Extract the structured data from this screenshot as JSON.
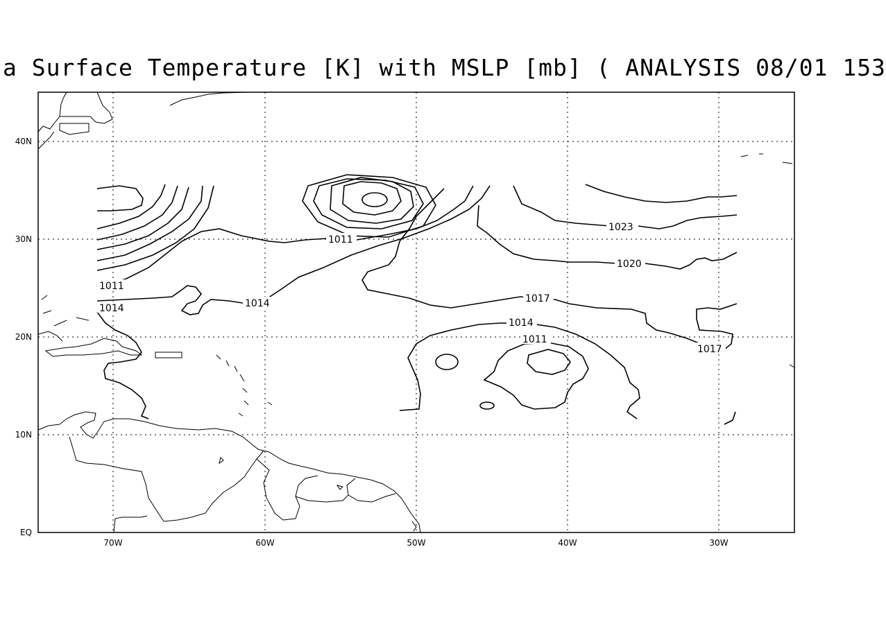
{
  "title": "a Surface Temperature [K] with MSLP [mb] ( ANALYSIS 08/01 153",
  "map": {
    "lon_range": [
      -75,
      -25
    ],
    "lat_range": [
      0,
      45
    ],
    "gridlines": "dotted",
    "lat_ticks": [
      "EQ",
      "10N",
      "20N",
      "30N",
      "40N"
    ],
    "lon_ticks": [
      "70W",
      "60W",
      "50W",
      "40W",
      "30W"
    ],
    "contour_labels": [
      "1011",
      "1011",
      "1014",
      "1014",
      "1017",
      "1017",
      "1011",
      "1014",
      "1020",
      "1023"
    ]
  }
}
